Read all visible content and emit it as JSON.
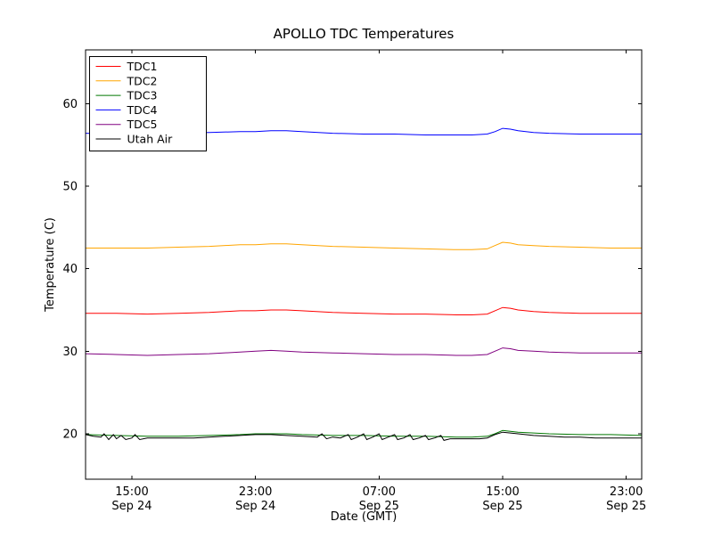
{
  "chart_data": {
    "type": "line",
    "title": "APOLLO TDC Temperatures",
    "xlabel": "Date (GMT)",
    "ylabel": "Temperature (C)",
    "x_unit": "hours since Sep 24 00:00 GMT",
    "xlim": [
      12,
      48
    ],
    "ylim": [
      14.5,
      66.5
    ],
    "grid": false,
    "legend_position": "upper left",
    "yticks": [
      20,
      30,
      40,
      50,
      60
    ],
    "xticks": [
      {
        "value": 15,
        "line1": "15:00",
        "line2": "Sep 24"
      },
      {
        "value": 23,
        "line1": "23:00",
        "line2": "Sep 24"
      },
      {
        "value": 31,
        "line1": "07:00",
        "line2": "Sep 25"
      },
      {
        "value": 39,
        "line1": "15:00",
        "line2": "Sep 25"
      },
      {
        "value": 47,
        "line1": "23:00",
        "line2": "Sep 25"
      }
    ],
    "series": [
      {
        "name": "TDC1",
        "color": "#ff0000",
        "x": [
          12,
          14,
          16,
          18,
          20,
          22,
          23,
          24,
          25,
          26,
          28,
          30,
          32,
          34,
          36,
          37,
          38,
          38.5,
          39,
          39.5,
          40,
          41,
          42,
          44,
          46,
          48
        ],
        "y": [
          34.6,
          34.6,
          34.5,
          34.6,
          34.7,
          34.9,
          34.9,
          35.0,
          35.0,
          34.9,
          34.7,
          34.6,
          34.5,
          34.5,
          34.4,
          34.4,
          34.5,
          34.9,
          35.3,
          35.2,
          35.0,
          34.8,
          34.7,
          34.6,
          34.6,
          34.6
        ]
      },
      {
        "name": "TDC2",
        "color": "#ffa500",
        "x": [
          12,
          14,
          16,
          18,
          20,
          22,
          23,
          24,
          25,
          26,
          28,
          30,
          32,
          34,
          36,
          37,
          38,
          38.5,
          39,
          39.5,
          40,
          41,
          42,
          44,
          46,
          48
        ],
        "y": [
          42.5,
          42.5,
          42.5,
          42.6,
          42.7,
          42.9,
          42.9,
          43.0,
          43.0,
          42.9,
          42.7,
          42.6,
          42.5,
          42.4,
          42.3,
          42.3,
          42.4,
          42.8,
          43.2,
          43.1,
          42.9,
          42.8,
          42.7,
          42.6,
          42.5,
          42.5
        ]
      },
      {
        "name": "TDC3",
        "color": "#007700",
        "x": [
          12,
          14,
          16,
          18,
          20,
          22,
          23,
          24,
          25,
          26,
          28,
          30,
          32,
          34,
          36,
          37,
          38,
          38.5,
          39,
          39.5,
          40,
          41,
          42,
          44,
          46,
          48
        ],
        "y": [
          19.9,
          19.8,
          19.7,
          19.7,
          19.8,
          19.9,
          20.0,
          20.0,
          20.0,
          19.9,
          19.8,
          19.8,
          19.7,
          19.7,
          19.6,
          19.6,
          19.7,
          20.0,
          20.4,
          20.3,
          20.2,
          20.1,
          20.0,
          19.9,
          19.9,
          19.8
        ]
      },
      {
        "name": "TDC4",
        "color": "#0000ff",
        "x": [
          12,
          14,
          16,
          18,
          20,
          22,
          23,
          24,
          25,
          26,
          28,
          30,
          32,
          34,
          36,
          37,
          38,
          38.5,
          39,
          39.5,
          40,
          41,
          42,
          44,
          46,
          48
        ],
        "y": [
          56.4,
          56.3,
          56.3,
          56.4,
          56.5,
          56.6,
          56.6,
          56.7,
          56.7,
          56.6,
          56.4,
          56.3,
          56.3,
          56.2,
          56.2,
          56.2,
          56.3,
          56.6,
          57.0,
          56.9,
          56.7,
          56.5,
          56.4,
          56.3,
          56.3,
          56.3
        ]
      },
      {
        "name": "TDC5",
        "color": "#800080",
        "x": [
          12,
          14,
          16,
          18,
          20,
          22,
          23,
          24,
          25,
          26,
          28,
          30,
          32,
          34,
          36,
          37,
          38,
          38.5,
          39,
          39.5,
          40,
          41,
          42,
          44,
          46,
          48
        ],
        "y": [
          29.7,
          29.6,
          29.5,
          29.6,
          29.7,
          29.9,
          30.0,
          30.1,
          30.0,
          29.9,
          29.8,
          29.7,
          29.6,
          29.6,
          29.5,
          29.5,
          29.6,
          30.0,
          30.4,
          30.3,
          30.1,
          30.0,
          29.9,
          29.8,
          29.8,
          29.8
        ]
      },
      {
        "name": "Utah Air",
        "color": "#000000",
        "x": [
          12,
          12.5,
          13,
          13.2,
          13.5,
          13.8,
          14,
          14.3,
          14.6,
          15,
          15.2,
          15.5,
          16,
          17,
          18,
          19,
          20,
          21,
          22,
          23,
          24,
          25,
          26,
          27,
          27.3,
          27.6,
          28,
          28.5,
          29,
          29.2,
          29.6,
          30,
          30.2,
          30.6,
          31,
          31.2,
          31.6,
          32,
          32.2,
          32.6,
          33,
          33.2,
          33.6,
          34,
          34.2,
          34.6,
          35,
          35.2,
          35.6,
          36,
          36.5,
          37,
          37.5,
          38,
          38.5,
          39,
          39.5,
          40,
          41,
          42,
          43,
          44,
          45,
          46,
          47,
          48
        ],
        "y": [
          19.9,
          19.7,
          19.6,
          20.0,
          19.3,
          19.9,
          19.4,
          19.8,
          19.3,
          19.5,
          19.9,
          19.3,
          19.5,
          19.5,
          19.5,
          19.5,
          19.6,
          19.7,
          19.8,
          19.9,
          19.9,
          19.8,
          19.7,
          19.6,
          20.0,
          19.4,
          19.6,
          19.5,
          19.9,
          19.3,
          19.6,
          20.0,
          19.3,
          19.6,
          20.0,
          19.3,
          19.6,
          19.9,
          19.3,
          19.5,
          19.9,
          19.3,
          19.5,
          19.8,
          19.3,
          19.5,
          19.8,
          19.2,
          19.4,
          19.4,
          19.4,
          19.4,
          19.4,
          19.5,
          19.9,
          20.2,
          20.1,
          20.0,
          19.8,
          19.7,
          19.6,
          19.6,
          19.5,
          19.5,
          19.5,
          19.5
        ]
      }
    ],
    "colors": {
      "axis": "#000000",
      "background": "#ffffff"
    }
  }
}
